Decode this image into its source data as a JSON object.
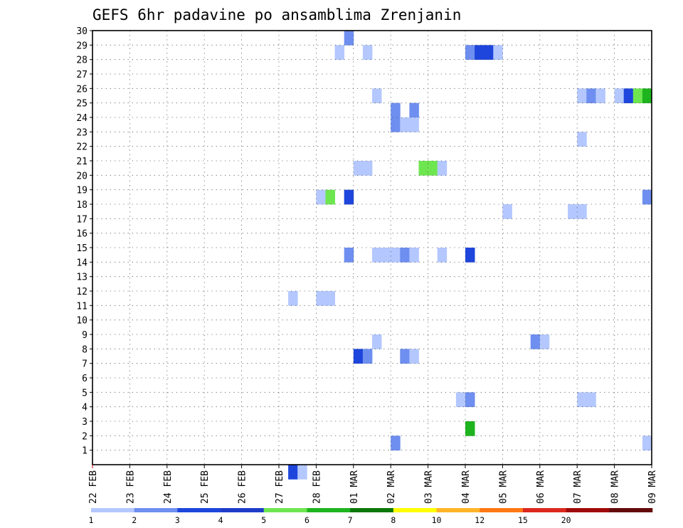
{
  "chart_data": {
    "type": "heatmap",
    "title": "GEFS 6hr padavine po ansamblima Zrenjanin",
    "x_ticks": [
      "22 FEB",
      "23 FEB",
      "24 FEB",
      "25 FEB",
      "26 FEB",
      "27 FEB",
      "28 FEB",
      "01 MAR",
      "02 MAR",
      "03 MAR",
      "04 MAR",
      "05 MAR",
      "06 MAR",
      "07 MAR",
      "08 MAR",
      "09 MAR"
    ],
    "y_ticks": [
      1,
      2,
      3,
      4,
      5,
      6,
      7,
      8,
      9,
      10,
      11,
      12,
      13,
      14,
      15,
      16,
      17,
      18,
      19,
      20,
      21,
      22,
      23,
      24,
      25,
      26,
      27,
      28,
      29,
      30
    ],
    "x_unit": "6-hour step from 22 FEB 00Z",
    "xlim": [
      0,
      60
    ],
    "ylim": [
      0,
      30
    ],
    "grid": true,
    "colorbar": {
      "labels": [
        "1",
        "2",
        "3",
        "4",
        "5",
        "6",
        "7",
        "8",
        "10",
        "12",
        "15",
        "20"
      ],
      "colors": [
        "#b4c8ff",
        "#6e8ff0",
        "#1e46dc",
        "#1e3cc8",
        "#6ee650",
        "#1eb41e",
        "#0a780a",
        "#ffff00",
        "#ffb428",
        "#ff7814",
        "#dc281e",
        "#a00a0a",
        "#640a0a"
      ]
    },
    "cells": [
      {
        "m": 30,
        "t": 27,
        "c": 1
      },
      {
        "m": 29,
        "t": 26,
        "c": 0
      },
      {
        "m": 29,
        "t": 29,
        "c": 0
      },
      {
        "m": 29,
        "t": 40,
        "c": 1
      },
      {
        "m": 29,
        "t": 41,
        "c": 2
      },
      {
        "m": 29,
        "t": 42,
        "c": 2
      },
      {
        "m": 29,
        "t": 43,
        "c": 0
      },
      {
        "m": 26,
        "t": 30,
        "c": 0
      },
      {
        "m": 26,
        "t": 52,
        "c": 0
      },
      {
        "m": 26,
        "t": 53,
        "c": 1
      },
      {
        "m": 26,
        "t": 54,
        "c": 0
      },
      {
        "m": 26,
        "t": 56,
        "c": 0
      },
      {
        "m": 26,
        "t": 57,
        "c": 2
      },
      {
        "m": 26,
        "t": 58,
        "c": 4
      },
      {
        "m": 26,
        "t": 59,
        "c": 5
      },
      {
        "m": 25,
        "t": 32,
        "c": 1
      },
      {
        "m": 25,
        "t": 34,
        "c": 1
      },
      {
        "m": 24,
        "t": 32,
        "c": 1
      },
      {
        "m": 24,
        "t": 33,
        "c": 0
      },
      {
        "m": 24,
        "t": 34,
        "c": 0
      },
      {
        "m": 23,
        "t": 52,
        "c": 0
      },
      {
        "m": 21,
        "t": 28,
        "c": 0
      },
      {
        "m": 21,
        "t": 29,
        "c": 0
      },
      {
        "m": 21,
        "t": 35,
        "c": 4
      },
      {
        "m": 21,
        "t": 36,
        "c": 4
      },
      {
        "m": 21,
        "t": 37,
        "c": 0
      },
      {
        "m": 19,
        "t": 24,
        "c": 0
      },
      {
        "m": 19,
        "t": 25,
        "c": 4
      },
      {
        "m": 19,
        "t": 27,
        "c": 2
      },
      {
        "m": 19,
        "t": 59,
        "c": 1
      },
      {
        "m": 18,
        "t": 44,
        "c": 0
      },
      {
        "m": 18,
        "t": 51,
        "c": 0
      },
      {
        "m": 18,
        "t": 52,
        "c": 0
      },
      {
        "m": 15,
        "t": 27,
        "c": 1
      },
      {
        "m": 15,
        "t": 30,
        "c": 0
      },
      {
        "m": 15,
        "t": 31,
        "c": 0
      },
      {
        "m": 15,
        "t": 32,
        "c": 0
      },
      {
        "m": 15,
        "t": 33,
        "c": 1
      },
      {
        "m": 15,
        "t": 34,
        "c": 0
      },
      {
        "m": 15,
        "t": 37,
        "c": 0
      },
      {
        "m": 15,
        "t": 40,
        "c": 2
      },
      {
        "m": 12,
        "t": 21,
        "c": 0
      },
      {
        "m": 12,
        "t": 24,
        "c": 0
      },
      {
        "m": 12,
        "t": 25,
        "c": 0
      },
      {
        "m": 9,
        "t": 30,
        "c": 0
      },
      {
        "m": 9,
        "t": 47,
        "c": 1
      },
      {
        "m": 9,
        "t": 48,
        "c": 0
      },
      {
        "m": 8,
        "t": 28,
        "c": 2
      },
      {
        "m": 8,
        "t": 29,
        "c": 1
      },
      {
        "m": 8,
        "t": 33,
        "c": 1
      },
      {
        "m": 8,
        "t": 34,
        "c": 0
      },
      {
        "m": 5,
        "t": 39,
        "c": 0
      },
      {
        "m": 5,
        "t": 40,
        "c": 1
      },
      {
        "m": 5,
        "t": 52,
        "c": 0
      },
      {
        "m": 5,
        "t": 53,
        "c": 0
      },
      {
        "m": 3,
        "t": 40,
        "c": 5
      },
      {
        "m": 2,
        "t": 32,
        "c": 1
      },
      {
        "m": 2,
        "t": 59,
        "c": 0
      },
      {
        "m": 0,
        "t": 21,
        "c": 2
      },
      {
        "m": 0,
        "t": 22,
        "c": 0
      }
    ]
  }
}
